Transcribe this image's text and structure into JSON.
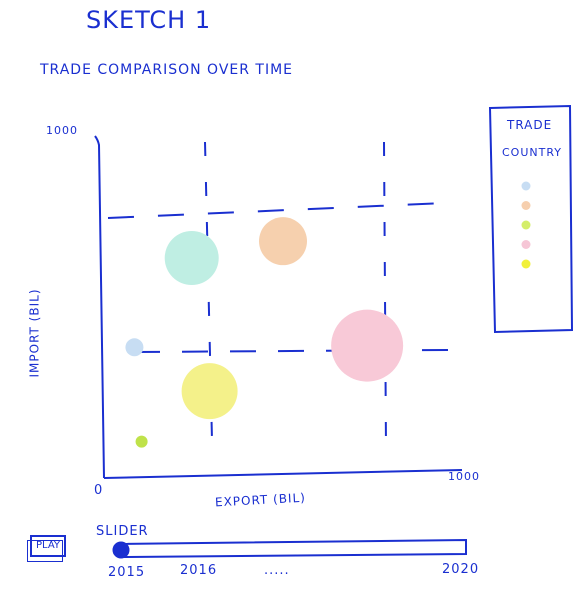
{
  "sketch_title": "SKETCH 1",
  "chart_title": "TRADE COMPARISON OVER TIME",
  "y_axis": {
    "label": "IMPORT (BIL)",
    "max_label": "1000"
  },
  "x_axis": {
    "label": "EXPORT (BIL)",
    "max_label": "1000",
    "origin_label": "0"
  },
  "legend": {
    "title_line1": "TRADE",
    "title_line2": "COUNTRY",
    "colors": [
      "#c7ddf3",
      "#f6cfae",
      "#d4ee6a",
      "#f6c6d6",
      "#f1f03a"
    ]
  },
  "controls": {
    "play_label": "PLAY",
    "slider_label": "SLIDER",
    "slider_value_fraction": 0.0,
    "ticks": [
      "2015",
      "2016",
      ".....",
      "2020"
    ]
  },
  "chart_data": {
    "type": "scatter",
    "title": "TRADE COMPARISON OVER TIME",
    "xlabel": "EXPORT (BIL)",
    "ylabel": "IMPORT (BIL)",
    "xlim": [
      0,
      1000
    ],
    "ylim": [
      0,
      1000
    ],
    "points": [
      {
        "x": 245,
        "y": 635,
        "r": 27,
        "color": "#bfeee3"
      },
      {
        "x": 500,
        "y": 685,
        "r": 24,
        "color": "#f6d0ae"
      },
      {
        "x": 735,
        "y": 375,
        "r": 36,
        "color": "#f8c9d7"
      },
      {
        "x": 85,
        "y": 370,
        "r": 9,
        "color": "#c7ddf3"
      },
      {
        "x": 295,
        "y": 240,
        "r": 28,
        "color": "#f4f18a"
      },
      {
        "x": 105,
        "y": 90,
        "r": 6,
        "color": "#bfe24a"
      }
    ]
  }
}
